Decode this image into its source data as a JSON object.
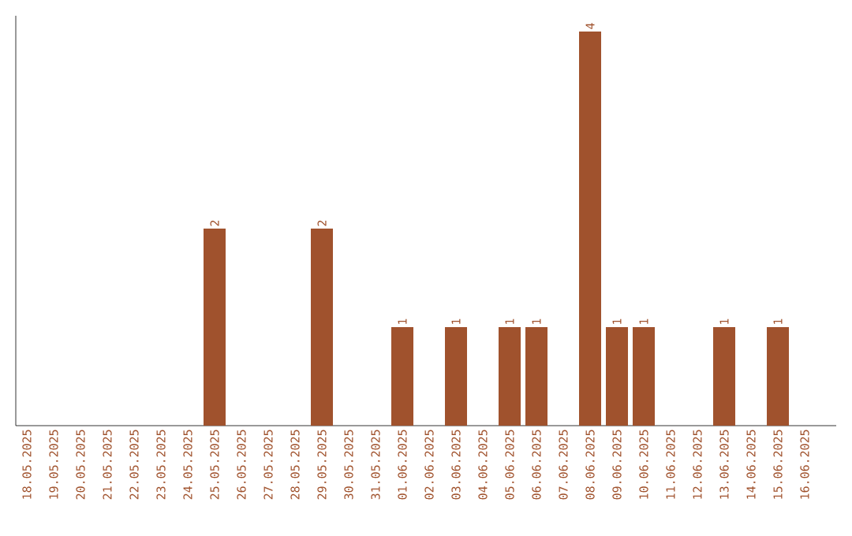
{
  "chart_data": {
    "type": "bar",
    "categories": [
      "18.05.2025",
      "19.05.2025",
      "20.05.2025",
      "21.05.2025",
      "22.05.2025",
      "23.05.2025",
      "24.05.2025",
      "25.05.2025",
      "26.05.2025",
      "27.05.2025",
      "28.05.2025",
      "29.05.2025",
      "30.05.2025",
      "31.05.2025",
      "01.06.2025",
      "02.06.2025",
      "03.06.2025",
      "04.06.2025",
      "05.06.2025",
      "06.06.2025",
      "07.06.2025",
      "08.06.2025",
      "09.06.2025",
      "10.06.2025",
      "11.06.2025",
      "12.06.2025",
      "13.06.2025",
      "14.06.2025",
      "15.06.2025",
      "16.06.2025"
    ],
    "values": [
      0,
      0,
      0,
      0,
      0,
      0,
      0,
      2,
      0,
      0,
      0,
      2,
      0,
      0,
      1,
      0,
      1,
      0,
      1,
      1,
      0,
      4,
      1,
      1,
      0,
      0,
      1,
      0,
      1,
      0
    ],
    "value_labels": [
      null,
      null,
      null,
      null,
      null,
      null,
      null,
      "2",
      null,
      null,
      null,
      "2",
      null,
      null,
      "1",
      null,
      "1",
      null,
      "1",
      "1",
      null,
      "4",
      "1",
      "1",
      null,
      null,
      "1",
      null,
      "1",
      null
    ],
    "color": "#a0522d",
    "tick_labels": "x"
  }
}
